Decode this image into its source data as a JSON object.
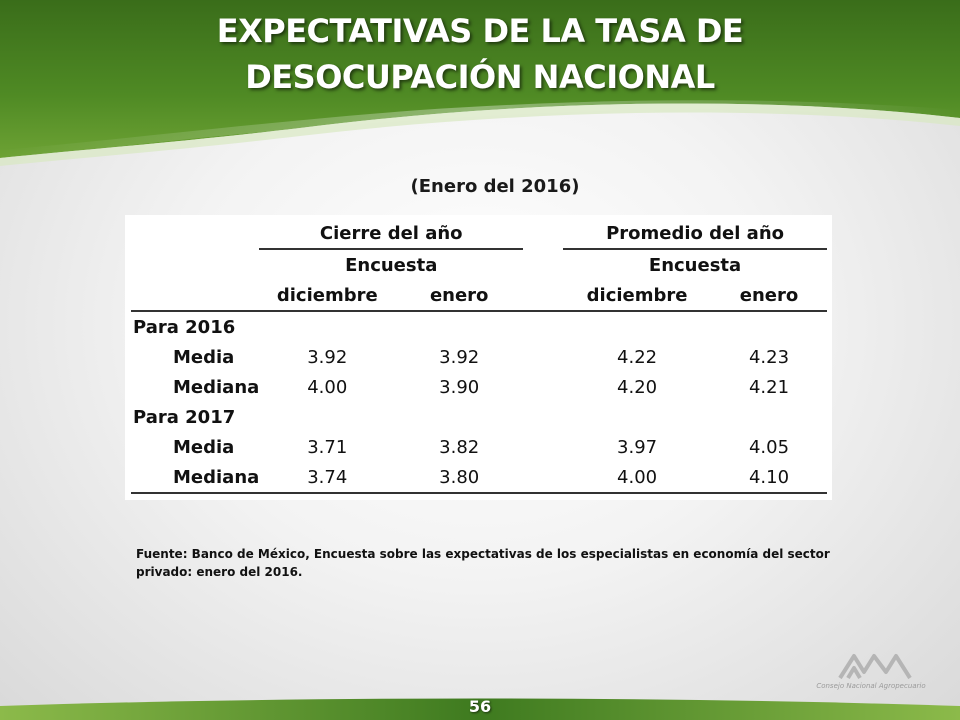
{
  "slide": {
    "title_line1": "EXPECTATIVAS DE LA TASA DE",
    "title_line2": "DESOCUPACIÓN NACIONAL",
    "subtitle": "(Enero del 2016)",
    "page_number": "56",
    "logo_text": "Consejo Nacional Agropecuario"
  },
  "table": {
    "group_headers": [
      "Cierre del año",
      "Promedio del año"
    ],
    "survey_label": "Encuesta",
    "col_headers": [
      "diciembre",
      "enero",
      "diciembre",
      "enero"
    ],
    "sections": [
      {
        "label": "Para 2016",
        "rows": [
          {
            "label": "Media",
            "values": [
              "3.92",
              "3.92",
              "4.22",
              "4.23"
            ]
          },
          {
            "label": "Mediana",
            "values": [
              "4.00",
              "3.90",
              "4.20",
              "4.21"
            ]
          }
        ]
      },
      {
        "label": "Para 2017",
        "rows": [
          {
            "label": "Media",
            "values": [
              "3.71",
              "3.82",
              "3.97",
              "4.05"
            ]
          },
          {
            "label": "Mediana",
            "values": [
              "3.74",
              "3.80",
              "4.00",
              "4.10"
            ]
          }
        ]
      }
    ]
  },
  "footnote": "Fuente: Banco de México, Encuesta sobre las expectativas de los especialistas en economía del sector privado: enero del 2016.",
  "colors": {
    "header_dark_green": "#2f5d17",
    "header_light_green": "#7fae3a",
    "footer_green": "#3e7a1f"
  }
}
